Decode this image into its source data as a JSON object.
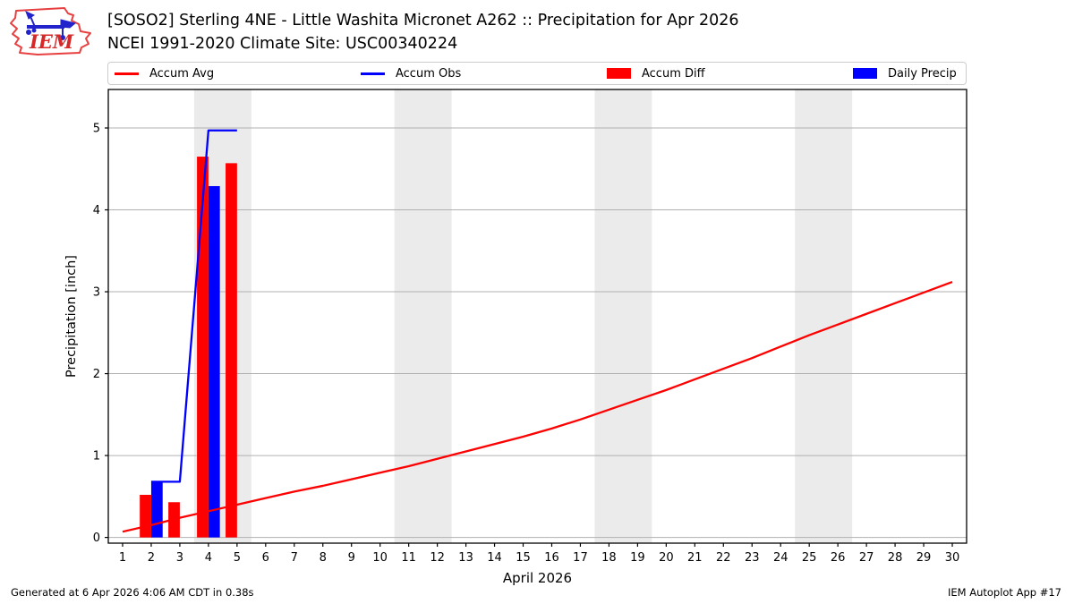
{
  "header": {
    "title_line1": "[SOSO2] Sterling 4NE - Little Washita Micronet A262 :: Precipitation for Apr 2026",
    "title_line2": "NCEI 1991-2020 Climate Site: USC00340224",
    "logo_text": "IEM"
  },
  "legend": {
    "position": "top-strip",
    "items": [
      {
        "label": "Accum Avg",
        "swatch": "line",
        "color": "#ff0000"
      },
      {
        "label": "Accum Obs",
        "swatch": "line",
        "color": "#0000ff"
      },
      {
        "label": "Accum Diff",
        "swatch": "rect",
        "color": "#ff0000"
      },
      {
        "label": "Daily Precip",
        "swatch": "rect",
        "color": "#0000ff"
      }
    ]
  },
  "footer": {
    "left": "Generated at 6 Apr 2026 4:06 AM CDT in 0.38s",
    "right": "IEM Autoplot App #17"
  },
  "chart_data": {
    "type": "mixed-bar-line",
    "xlabel": "April 2026",
    "ylabel": "Precipitation [inch]",
    "xlim": [
      0.5,
      30.5
    ],
    "ylim": [
      -0.07,
      5.47
    ],
    "x_ticks": [
      1,
      2,
      3,
      4,
      5,
      6,
      7,
      8,
      9,
      10,
      11,
      12,
      13,
      14,
      15,
      16,
      17,
      18,
      19,
      20,
      21,
      22,
      23,
      24,
      25,
      26,
      27,
      28,
      29,
      30
    ],
    "y_ticks": [
      0,
      1,
      2,
      3,
      4,
      5
    ],
    "grid": "horizontal-only",
    "grid_color": "#b0b0b0",
    "band_color": "#ebebeb",
    "weekend_bands": [
      [
        3.5,
        5.5
      ],
      [
        10.5,
        12.5
      ],
      [
        17.5,
        19.5
      ],
      [
        24.5,
        26.5
      ]
    ],
    "series": [
      {
        "name": "Accum Diff",
        "type": "bar",
        "color": "#ff0000",
        "offset": -0.2,
        "bar_width": 0.4,
        "x": [
          2,
          3,
          4,
          5
        ],
        "y": [
          0.52,
          0.43,
          4.65,
          4.57
        ]
      },
      {
        "name": "Daily Precip",
        "type": "bar",
        "color": "#0000ff",
        "offset": 0.2,
        "bar_width": 0.4,
        "x": [
          2,
          4
        ],
        "y": [
          0.68,
          4.29
        ]
      },
      {
        "name": "Accum Avg",
        "type": "line",
        "color": "#ff0000",
        "x": [
          1,
          2,
          3,
          4,
          5,
          6,
          7,
          8,
          9,
          10,
          11,
          12,
          13,
          14,
          15,
          16,
          17,
          18,
          19,
          20,
          21,
          22,
          23,
          24,
          25,
          26,
          27,
          28,
          29,
          30
        ],
        "y": [
          0.07,
          0.15,
          0.24,
          0.32,
          0.4,
          0.48,
          0.56,
          0.63,
          0.71,
          0.79,
          0.87,
          0.96,
          1.05,
          1.14,
          1.23,
          1.33,
          1.44,
          1.56,
          1.68,
          1.8,
          1.93,
          2.06,
          2.19,
          2.33,
          2.47,
          2.6,
          2.73,
          2.86,
          2.99,
          3.12
        ]
      },
      {
        "name": "Accum Obs",
        "type": "line",
        "color": "#0000ff",
        "x": [
          2,
          3,
          4,
          5
        ],
        "y": [
          0.68,
          0.68,
          4.97,
          4.97
        ]
      }
    ]
  }
}
